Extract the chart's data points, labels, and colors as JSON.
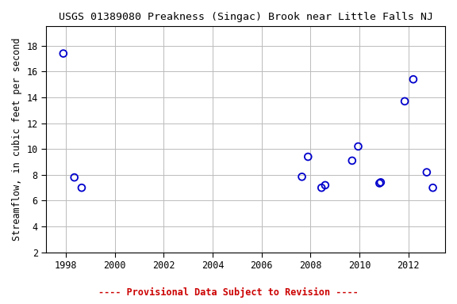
{
  "title": "USGS 01389080 Preakness (Singac) Brook near Little Falls NJ",
  "ylabel": "Streamflow, in cubic feet per second",
  "footer": "---- Provisional Data Subject to Revision ----",
  "x_data": [
    1997.9,
    1998.35,
    1998.65,
    2007.65,
    2007.9,
    2008.45,
    2008.6,
    2009.7,
    2009.95,
    2010.82,
    2010.87,
    2011.85,
    2012.2,
    2012.75,
    2013.0
  ],
  "y_data": [
    17.4,
    7.8,
    7.0,
    7.85,
    9.4,
    7.0,
    7.2,
    9.1,
    10.2,
    7.35,
    7.42,
    13.7,
    15.4,
    8.2,
    7.0
  ],
  "point_color": "#0000cc",
  "marker_size": 40,
  "marker_lw": 1.3,
  "ylim": [
    2,
    19.5
  ],
  "xlim": [
    1997.2,
    2013.5
  ],
  "yticks": [
    2,
    4,
    6,
    8,
    10,
    12,
    14,
    16,
    18
  ],
  "xticks": [
    1998,
    2000,
    2002,
    2004,
    2006,
    2008,
    2010,
    2012
  ],
  "bg_color": "#ffffff",
  "grid_color": "#bbbbbb",
  "footer_color": "#cc0000",
  "title_fontsize": 9.5,
  "label_fontsize": 8.5,
  "tick_fontsize": 8.5,
  "footer_fontsize": 8.5
}
